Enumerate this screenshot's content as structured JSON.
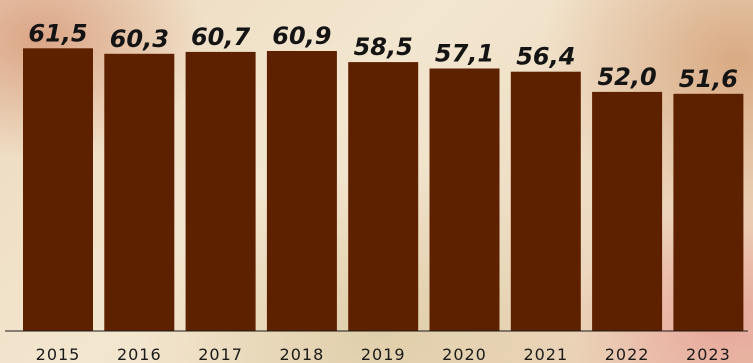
{
  "chart_data": {
    "type": "bar",
    "categories": [
      "2015",
      "2016",
      "2017",
      "2018",
      "2019",
      "2020",
      "2021",
      "2022",
      "2023"
    ],
    "values": [
      61.5,
      60.3,
      60.7,
      60.9,
      58.5,
      57.1,
      56.4,
      52.0,
      51.6
    ],
    "value_labels": [
      "61,5",
      "60,3",
      "60,7",
      "60,9",
      "58,5",
      "57,1",
      "56,4",
      "52,0",
      "51,6"
    ],
    "ylim": [
      0,
      72
    ],
    "grid": false,
    "colors": {
      "bar": "#5e2100",
      "text": "#141414"
    }
  }
}
